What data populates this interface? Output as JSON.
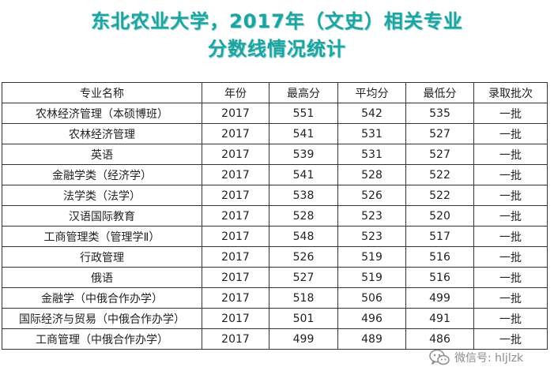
{
  "title": {
    "line1": "东北农业大学，2017年（文史）相关专业",
    "line2": "分数线情况统计"
  },
  "table": {
    "headers": [
      "专业名称",
      "年份",
      "最高分",
      "平均分",
      "最低分",
      "录取批次"
    ],
    "rows": [
      [
        "农林经济管理（本硕博班）",
        "2017",
        "551",
        "542",
        "535",
        "一批"
      ],
      [
        "农林经济管理",
        "2017",
        "541",
        "531",
        "527",
        "一批"
      ],
      [
        "英语",
        "2017",
        "539",
        "531",
        "527",
        "一批"
      ],
      [
        "金融学类（经济学）",
        "2017",
        "541",
        "528",
        "522",
        "一批"
      ],
      [
        "法学类（法学）",
        "2017",
        "538",
        "526",
        "522",
        "一批"
      ],
      [
        "汉语国际教育",
        "2017",
        "528",
        "523",
        "520",
        "一批"
      ],
      [
        "工商管理类（管理学Ⅱ）",
        "2017",
        "548",
        "523",
        "517",
        "一批"
      ],
      [
        "行政管理",
        "2017",
        "526",
        "519",
        "516",
        "一批"
      ],
      [
        "俄语",
        "2017",
        "527",
        "519",
        "516",
        "一批"
      ],
      [
        "金融学（中俄合作办学）",
        "2017",
        "518",
        "506",
        "499",
        "一批"
      ],
      [
        "国际经济与贸易（中俄合作办学）",
        "2017",
        "501",
        "496",
        "491",
        "一批"
      ],
      [
        "工商管理（中俄合作办学）",
        "2017",
        "499",
        "489",
        "486",
        "一批"
      ]
    ]
  },
  "watermark": {
    "icon": "wechat-icon",
    "text": "微信号: hljlzk"
  },
  "colors": {
    "title": "#1fa3a0",
    "border": "#333333",
    "text": "#222222",
    "watermark": "#8c8c8c"
  }
}
